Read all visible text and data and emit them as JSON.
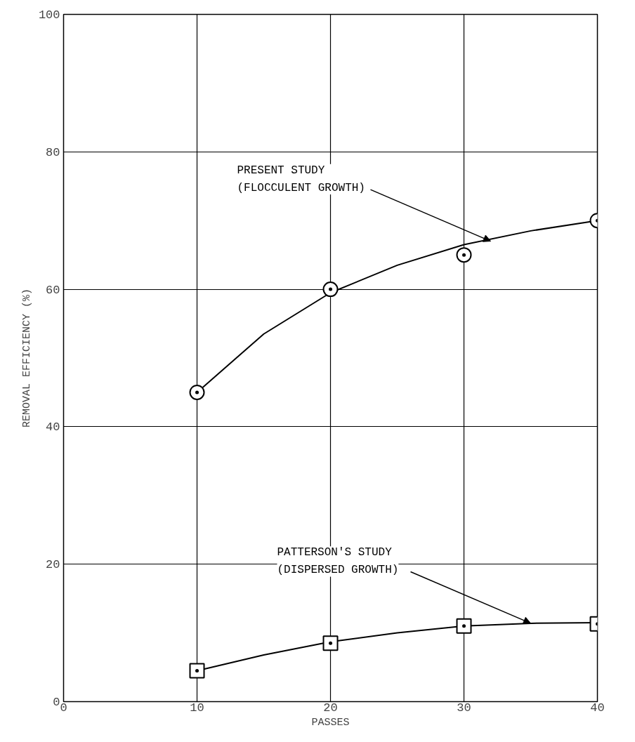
{
  "chart_data": {
    "type": "scatter",
    "xlabel": "PASSES",
    "ylabel": "REMOVAL EFFICIENCY (%)",
    "xlim": [
      0,
      40
    ],
    "ylim": [
      0,
      100
    ],
    "xticks": [
      0,
      10,
      20,
      30,
      40
    ],
    "yticks": [
      0,
      20,
      40,
      60,
      80,
      100
    ],
    "grid": true,
    "series": [
      {
        "type": "line",
        "color": "#000000",
        "marker": "none",
        "line_style": "solid",
        "x": [
          10,
          15,
          20,
          25,
          30,
          35,
          40
        ],
        "values": [
          45,
          53.5,
          59.5,
          63.5,
          66.5,
          68.5,
          70
        ]
      },
      {
        "type": "line",
        "color": "#000000",
        "marker": "none",
        "line_style": "solid",
        "x": [
          10,
          15,
          20,
          25,
          30,
          35,
          40
        ],
        "values": [
          4.5,
          6.8,
          8.7,
          10,
          11,
          11.4,
          11.5
        ]
      },
      {
        "color": "#000000",
        "marker": "circle",
        "x": [
          10,
          20,
          30,
          40
        ],
        "values": [
          45,
          60,
          65,
          70
        ]
      },
      {
        "color": "#000000",
        "marker": "square",
        "x": [
          10,
          20,
          30,
          40
        ],
        "values": [
          4.5,
          8.5,
          11,
          11.3
        ]
      }
    ],
    "annotations": [
      {
        "text": "PRESENT STUDY\n(FLOCCULENT GROWTH)",
        "x": 32,
        "y": 67
      },
      {
        "text": "PATTERSON'S STUDY\n(DISPERSED GROWTH)",
        "x": 35,
        "y": 11.4
      }
    ]
  }
}
